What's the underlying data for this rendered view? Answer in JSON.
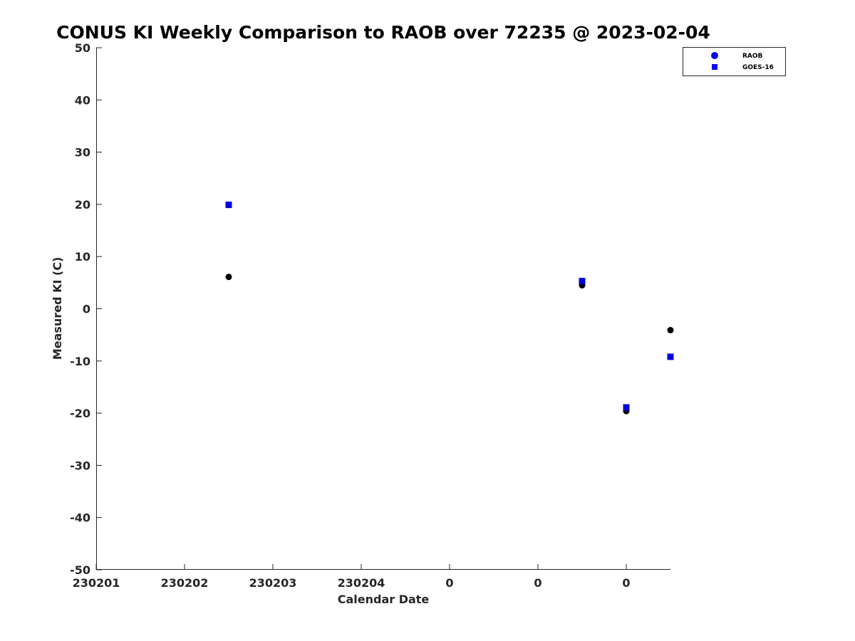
{
  "chart_data": {
    "type": "scatter",
    "title": "CONUS KI Weekly Comparison to RAOB over 72235 @ 2023-02-04",
    "xlabel": "Calendar Date",
    "ylabel": "Measured KI (C)",
    "xlim": [
      0,
      6.5
    ],
    "ylim": [
      -50,
      50
    ],
    "x_ticks": [
      {
        "x": 0,
        "label": "230201"
      },
      {
        "x": 1,
        "label": "230202"
      },
      {
        "x": 2,
        "label": "230203"
      },
      {
        "x": 3,
        "label": "230204"
      },
      {
        "x": 4,
        "label": "0"
      },
      {
        "x": 5,
        "label": "0"
      },
      {
        "x": 6,
        "label": "0"
      }
    ],
    "y_ticks": [
      {
        "y": 50,
        "label": "50"
      },
      {
        "y": 40,
        "label": "40"
      },
      {
        "y": 30,
        "label": "30"
      },
      {
        "y": 20,
        "label": "20"
      },
      {
        "y": 10,
        "label": "10"
      },
      {
        "y": 0,
        "label": "0"
      },
      {
        "y": -10,
        "label": "-10"
      },
      {
        "y": -20,
        "label": "-20"
      },
      {
        "y": -30,
        "label": "-30"
      },
      {
        "y": -40,
        "label": "-40"
      },
      {
        "y": -50,
        "label": "-50"
      }
    ],
    "series": [
      {
        "name": "RAOB",
        "marker": "circle",
        "color": "#000000",
        "legend_color": "#0000ff",
        "points": [
          {
            "x": 1.5,
            "y": 6.1
          },
          {
            "x": 5.5,
            "y": 4.5
          },
          {
            "x": 6.0,
            "y": -19.6
          },
          {
            "x": 6.5,
            "y": -4.1
          }
        ]
      },
      {
        "name": "GOES-16",
        "marker": "square",
        "color": "#0000dd",
        "legend_color": "#0000ff",
        "points": [
          {
            "x": 1.5,
            "y": 19.9
          },
          {
            "x": 5.5,
            "y": 5.3
          },
          {
            "x": 6.0,
            "y": -18.9
          },
          {
            "x": 6.5,
            "y": -9.2
          }
        ]
      }
    ],
    "legend_position": "top-right",
    "grid": false
  }
}
